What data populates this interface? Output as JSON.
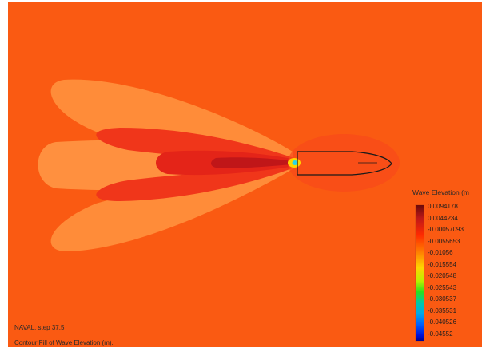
{
  "viewport": {
    "caption_line1": "NAVAL, step 37.5",
    "caption_line2": "Contour Fill of Wave Elevation (m)."
  },
  "legend": {
    "title": "Wave Elevation (m",
    "values": [
      "0.0094178",
      "0.0044234",
      "-0.00057093",
      "-0.0055653",
      "-0.01056",
      "-0.015554",
      "-0.020548",
      "-0.025543",
      "-0.030537",
      "-0.035531",
      "-0.040526",
      "-0.04552"
    ]
  },
  "colors": {
    "background_field": "#fa5a12",
    "wake_light": "#ff8f3c",
    "wake_mid": "#f0361a",
    "wake_dark": "#d8151a",
    "bow_cyan": "#2ad6e6",
    "hull_outline": "#1a1a1a"
  }
}
